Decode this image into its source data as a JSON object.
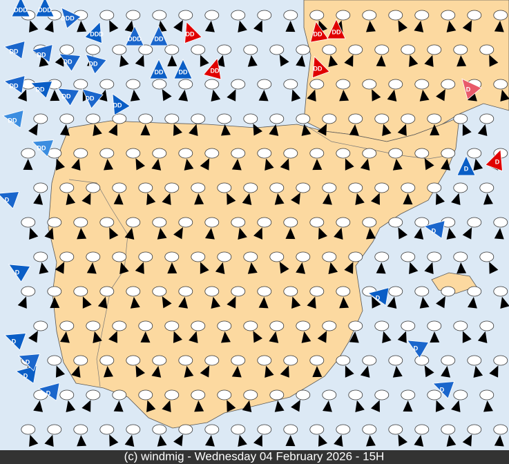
{
  "footer": "(c) windmig - Wednesday 04 February 2026 - 15H",
  "symbols": [
    {
      "label": "DDD"
    },
    {
      "label": "DDD"
    },
    {
      "label": "DDD"
    },
    {
      "label": "DDD"
    },
    {
      "label": "DDD"
    },
    {
      "label": "DD"
    },
    {
      "label": "DD"
    },
    {
      "label": "DD"
    },
    {
      "label": "DD"
    },
    {
      "label": "DD"
    },
    {
      "label": "DD"
    },
    {
      "label": "DD"
    },
    {
      "label": "DD"
    },
    {
      "label": "DD"
    },
    {
      "label": "DD"
    },
    {
      "label": "DD"
    },
    {
      "label": "DD"
    },
    {
      "label": "DD"
    },
    {
      "label": "DD"
    },
    {
      "label": "DD"
    },
    {
      "label": "DD"
    },
    {
      "label": "DD"
    },
    {
      "label": "DD"
    },
    {
      "label": "DD"
    },
    {
      "label": "D"
    },
    {
      "label": "D"
    },
    {
      "label": "D"
    },
    {
      "label": "D"
    },
    {
      "label": "D"
    },
    {
      "label": "D"
    },
    {
      "label": "D"
    },
    {
      "label": "D"
    },
    {
      "label": "D"
    },
    {
      "label": "D"
    },
    {
      "label": "D"
    },
    {
      "label": "D"
    },
    {
      "label": "D"
    }
  ]
}
